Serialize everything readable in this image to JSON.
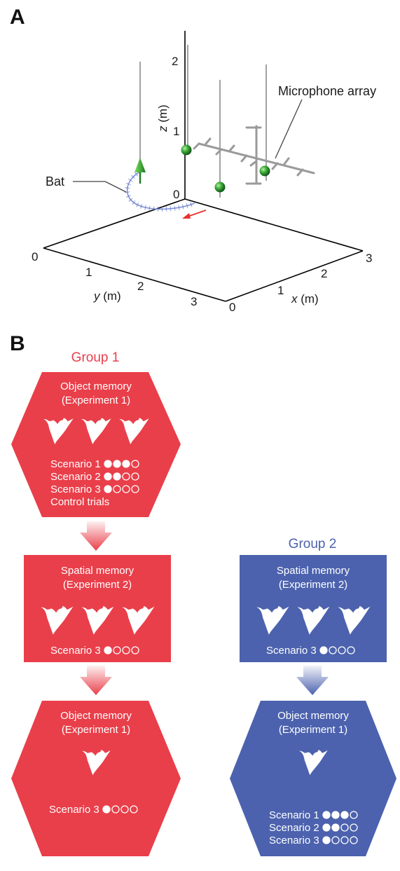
{
  "panel_a": {
    "label": "A",
    "bat_label": "Bat",
    "mic_label": "Microphone array",
    "axes": {
      "x_name": "x",
      "y_name": "y",
      "z_name": "z",
      "unit": " (m)",
      "x_ticks": [
        "0",
        "1",
        "2",
        "3"
      ],
      "y_ticks": [
        "0",
        "1",
        "2",
        "3"
      ],
      "z_ticks": [
        "0",
        "1",
        "2"
      ]
    },
    "colors": {
      "sphere": "#3fae3a",
      "trajectory": "#7f8fd6",
      "arrow": "#e8322d",
      "pole": "#8a8a8a"
    }
  },
  "panel_b": {
    "label": "B",
    "colors": {
      "group1": "#e93f4a",
      "group2": "#4c62ae"
    },
    "group1": {
      "title": "Group 1",
      "box1": {
        "line1": "Object memory",
        "line2": "(Experiment 1)",
        "bats": 3,
        "scenarios": [
          {
            "text": "Scenario 1",
            "filled": 3
          },
          {
            "text": "Scenario 2",
            "filled": 2
          },
          {
            "text": "Scenario 3",
            "filled": 1
          }
        ],
        "extra": "Control trials"
      },
      "box2": {
        "line1": "Spatial memory",
        "line2": "(Experiment 2)",
        "bats": 3,
        "scenarios": [
          {
            "text": "Scenario 3",
            "filled": 1
          }
        ]
      },
      "box3": {
        "line1": "Object memory",
        "line2": "(Experiment 1)",
        "bats": 1,
        "scenarios": [
          {
            "text": "Scenario 3",
            "filled": 1
          }
        ]
      }
    },
    "group2": {
      "title": "Group 2",
      "box2": {
        "line1": "Spatial memory",
        "line2": "(Experiment 2)",
        "bats": 3,
        "scenarios": [
          {
            "text": "Scenario 3",
            "filled": 1
          }
        ]
      },
      "box3": {
        "line1": "Object memory",
        "line2": "(Experiment 1)",
        "bats": 1,
        "scenarios": [
          {
            "text": "Scenario 1",
            "filled": 3
          },
          {
            "text": "Scenario 2",
            "filled": 2
          },
          {
            "text": "Scenario 3",
            "filled": 1
          }
        ]
      }
    }
  }
}
